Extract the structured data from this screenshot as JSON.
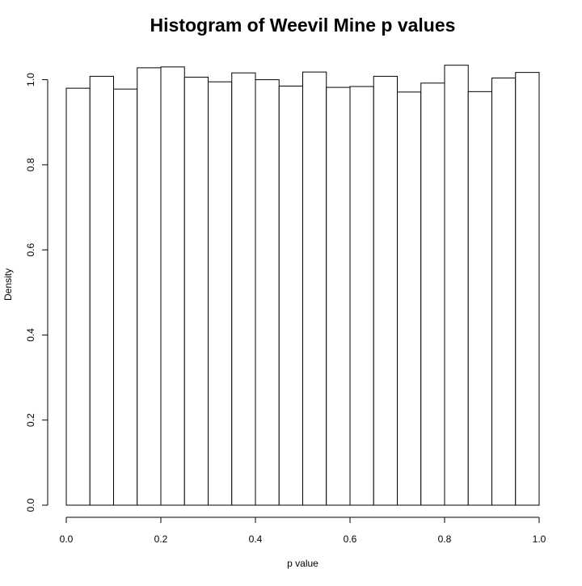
{
  "chart_data": {
    "type": "bar",
    "title": "Histogram of Weevil Mine p values",
    "xlabel": "p value",
    "ylabel": "Density",
    "xlim": [
      0,
      1
    ],
    "ylim": [
      0,
      1.04
    ],
    "grid": false,
    "bin_width": 0.05,
    "bins": [
      {
        "start": 0.0,
        "end": 0.05,
        "density": 0.98
      },
      {
        "start": 0.05,
        "end": 0.1,
        "density": 1.008
      },
      {
        "start": 0.1,
        "end": 0.15,
        "density": 0.978
      },
      {
        "start": 0.15,
        "end": 0.2,
        "density": 1.028
      },
      {
        "start": 0.2,
        "end": 0.25,
        "density": 1.03
      },
      {
        "start": 0.25,
        "end": 0.3,
        "density": 1.006
      },
      {
        "start": 0.3,
        "end": 0.35,
        "density": 0.995
      },
      {
        "start": 0.35,
        "end": 0.4,
        "density": 1.016
      },
      {
        "start": 0.4,
        "end": 0.45,
        "density": 1.0
      },
      {
        "start": 0.45,
        "end": 0.5,
        "density": 0.985
      },
      {
        "start": 0.5,
        "end": 0.55,
        "density": 1.018
      },
      {
        "start": 0.55,
        "end": 0.6,
        "density": 0.982
      },
      {
        "start": 0.6,
        "end": 0.65,
        "density": 0.984
      },
      {
        "start": 0.65,
        "end": 0.7,
        "density": 1.008
      },
      {
        "start": 0.7,
        "end": 0.75,
        "density": 0.971
      },
      {
        "start": 0.75,
        "end": 0.8,
        "density": 0.992
      },
      {
        "start": 0.8,
        "end": 0.85,
        "density": 1.034
      },
      {
        "start": 0.85,
        "end": 0.9,
        "density": 0.972
      },
      {
        "start": 0.9,
        "end": 0.95,
        "density": 1.004
      },
      {
        "start": 0.95,
        "end": 1.0,
        "density": 1.017
      }
    ],
    "x_ticks": [
      {
        "value": 0.0,
        "label": "0.0"
      },
      {
        "value": 0.2,
        "label": "0.2"
      },
      {
        "value": 0.4,
        "label": "0.4"
      },
      {
        "value": 0.6,
        "label": "0.6"
      },
      {
        "value": 0.8,
        "label": "0.8"
      },
      {
        "value": 1.0,
        "label": "1.0"
      }
    ],
    "y_ticks": [
      {
        "value": 0.0,
        "label": "0.0"
      },
      {
        "value": 0.2,
        "label": "0.2"
      },
      {
        "value": 0.4,
        "label": "0.4"
      },
      {
        "value": 0.6,
        "label": "0.6"
      },
      {
        "value": 0.8,
        "label": "0.8"
      },
      {
        "value": 1.0,
        "label": "1.0"
      }
    ],
    "colors": {
      "bar_fill": "#ffffff",
      "bar_stroke": "#000000",
      "axis": "#000000"
    }
  }
}
